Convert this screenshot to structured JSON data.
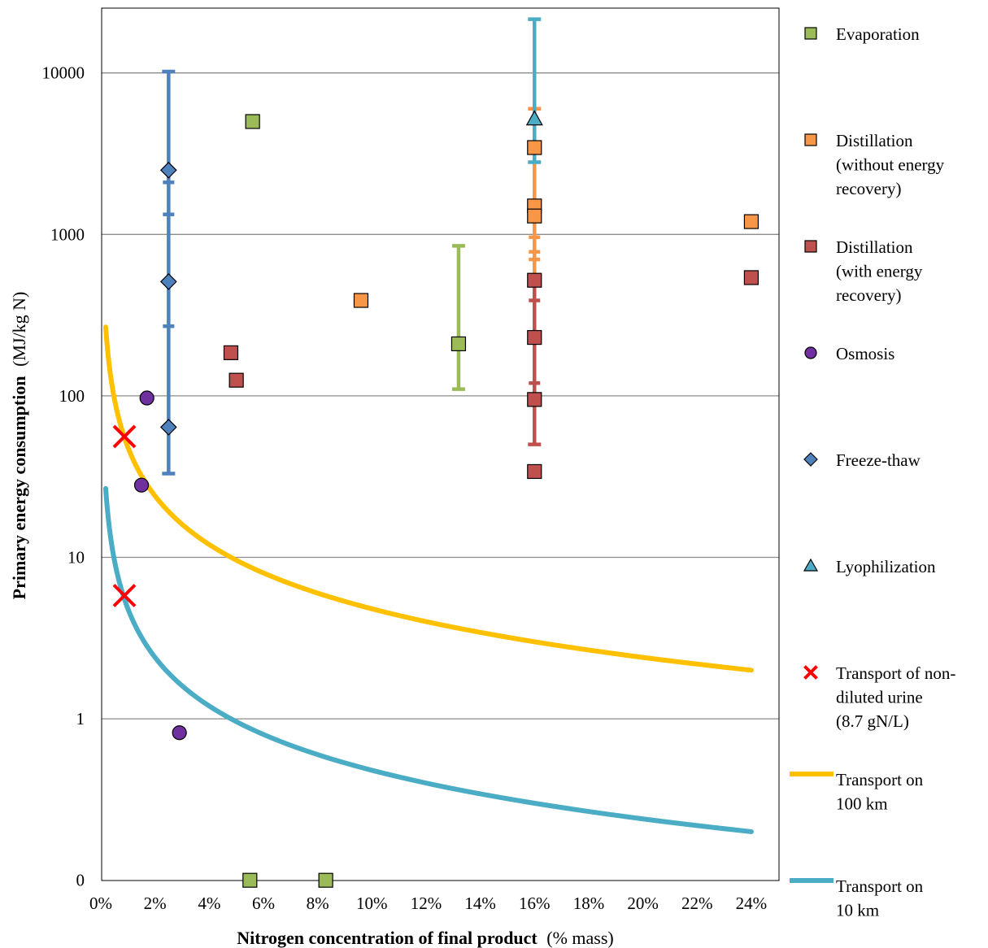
{
  "chart_data": {
    "type": "scatter",
    "title": "",
    "x_axis": {
      "label_bold": "Nitrogen concentration of final product",
      "label_unit": "(% mass)",
      "range": [
        0,
        25
      ],
      "ticks": [
        0,
        2,
        4,
        6,
        8,
        10,
        12,
        14,
        16,
        18,
        20,
        22,
        24
      ],
      "tick_labels": [
        "0%",
        "2%",
        "4%",
        "6%",
        "8%",
        "10%",
        "12%",
        "14%",
        "16%",
        "18%",
        "20%",
        "22%",
        "24%"
      ]
    },
    "y_axis": {
      "label_bold": "Primary energy consumption",
      "label_unit": "(MJ/kg N)",
      "scale": "log",
      "range_labels": [
        "0",
        "25000"
      ],
      "ticks": [
        0.1,
        1,
        10,
        100,
        1000,
        10000
      ],
      "tick_labels": [
        "0",
        "1",
        "10",
        "100",
        "1000",
        "10000"
      ]
    },
    "grid": "horizontal",
    "legend_position": "right",
    "series": [
      {
        "name": "Evaporation",
        "marker": "square",
        "color": "#9bbb59",
        "points": [
          [
            5.6,
            5000
          ],
          [
            13.2,
            210
          ],
          [
            5.5,
            0.1
          ],
          [
            8.3,
            0.1
          ]
        ],
        "error_bars": [
          {
            "x": 13.2,
            "low": 110,
            "high": 850
          }
        ]
      },
      {
        "name": "Distillation (without energy recovery)",
        "marker": "square",
        "color": "#f79646",
        "points": [
          [
            9.6,
            390
          ],
          [
            16,
            3450
          ],
          [
            16,
            1500
          ],
          [
            16,
            1300
          ],
          [
            24,
            1200
          ]
        ],
        "error_bars": [
          {
            "x": 16,
            "low": 500,
            "high": 6000
          }
        ],
        "extra_ticks": [
          {
            "x": 16,
            "y": [
              700,
              780,
              960
            ]
          }
        ]
      },
      {
        "name": "Distillation (with energy recovery)",
        "marker": "square",
        "color": "#c0504d",
        "points": [
          [
            4.8,
            185
          ],
          [
            5.0,
            125
          ],
          [
            16,
            520
          ],
          [
            16,
            230
          ],
          [
            16,
            95
          ],
          [
            16,
            34
          ],
          [
            24,
            540
          ]
        ],
        "error_bars": [
          {
            "x": 16,
            "low": 50,
            "high": 520
          }
        ],
        "extra_ticks": [
          {
            "x": 16,
            "y": [
              120,
              390
            ]
          }
        ]
      },
      {
        "name": "Osmosis",
        "marker": "circle",
        "color": "#7030a0",
        "points": [
          [
            1.7,
            97
          ],
          [
            1.5,
            28
          ],
          [
            2.9,
            0.82
          ]
        ]
      },
      {
        "name": "Freeze-thaw",
        "marker": "diamond",
        "color": "#4f81bd",
        "points": [
          [
            2.5,
            2500
          ],
          [
            2.5,
            510
          ],
          [
            2.5,
            64
          ]
        ],
        "error_bars": [
          {
            "x": 2.5,
            "low": 33,
            "high": 10200
          }
        ],
        "extra_ticks": [
          {
            "x": 2.5,
            "y": [
              2100,
              1330,
              270
            ]
          }
        ]
      },
      {
        "name": "Lyophilization",
        "marker": "triangle",
        "color": "#4bacc6",
        "points": [
          [
            16,
            5200
          ]
        ],
        "error_bars": [
          {
            "x": 16,
            "low": 2800,
            "high": 21500
          }
        ]
      },
      {
        "name": "Transport of non-diluted urine (8.7 gN/L)",
        "marker": "x",
        "color": "#ff0000",
        "points": [
          [
            0.87,
            56
          ],
          [
            0.87,
            5.8
          ]
        ]
      },
      {
        "name": "Transport on 100 km",
        "marker": "line",
        "color": "#ffc000",
        "formula_constant": 48,
        "x_start": 0.18,
        "x_end": 24
      },
      {
        "name": "Transport on 10 km",
        "marker": "line",
        "color": "#4bacc6",
        "formula_constant": 4.8,
        "x_start": 0.18,
        "x_end": 24
      }
    ]
  },
  "legend": [
    {
      "marker": "square",
      "color": "#9bbb59",
      "lines": [
        "Evaporation"
      ]
    },
    {
      "marker": "square",
      "color": "#f79646",
      "lines": [
        "Distillation",
        "(without energy",
        "recovery)"
      ]
    },
    {
      "marker": "square",
      "color": "#c0504d",
      "lines": [
        "Distillation",
        "(with energy",
        "recovery)"
      ]
    },
    {
      "marker": "circle",
      "color": "#7030a0",
      "lines": [
        "Osmosis"
      ]
    },
    {
      "marker": "diamond",
      "color": "#4f81bd",
      "lines": [
        "Freeze-thaw"
      ]
    },
    {
      "marker": "triangle",
      "color": "#4bacc6",
      "lines": [
        "Lyophilization"
      ]
    },
    {
      "marker": "x",
      "color": "#ff0000",
      "lines": [
        "Transport of non-",
        "diluted urine",
        "(8.7 gN/L)"
      ]
    },
    {
      "marker": "line",
      "color": "#ffc000",
      "lines": [
        "Transport on",
        "100 km"
      ]
    },
    {
      "marker": "line",
      "color": "#4bacc6",
      "lines": [
        "Transport on",
        "10 km"
      ]
    }
  ]
}
